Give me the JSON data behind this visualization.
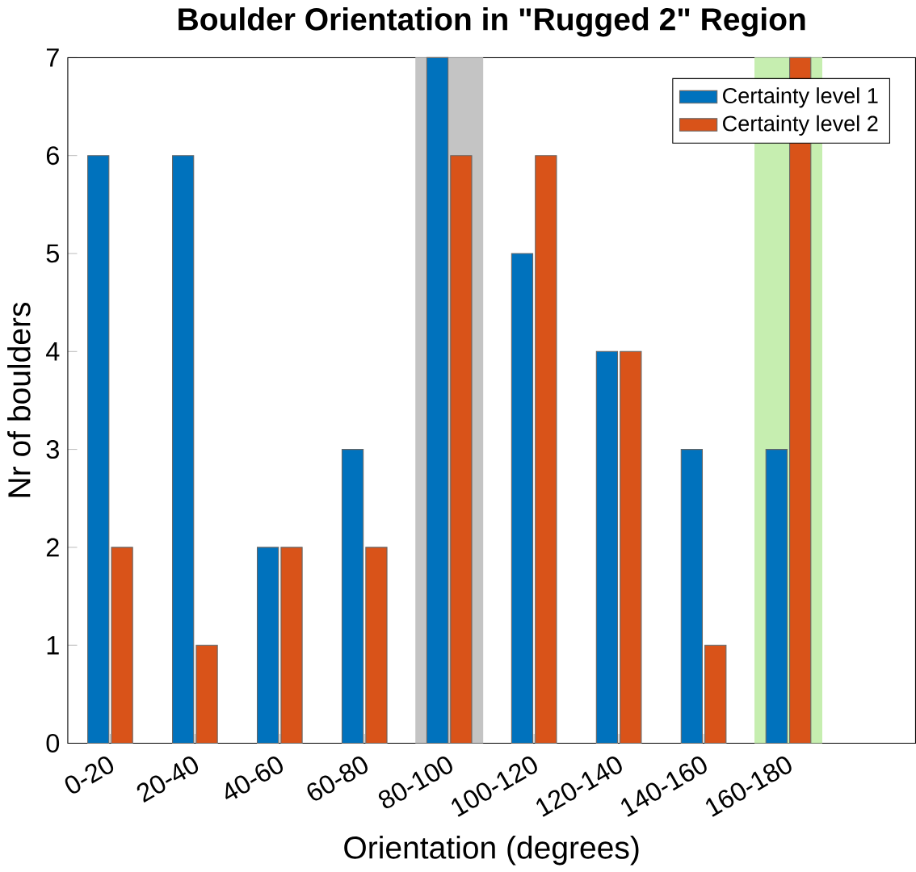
{
  "chart_data": {
    "type": "bar",
    "title": "Boulder Orientation in \"Rugged 2\" Region",
    "xlabel": "Orientation (degrees)",
    "ylabel": "Nr of boulders",
    "categories": [
      "0-20",
      "20-40",
      "40-60",
      "60-80",
      "80-100",
      "100-120",
      "120-140",
      "140-160",
      "160-180"
    ],
    "series": [
      {
        "name": "Certainty level 1",
        "color": "#0072bd",
        "values": [
          6,
          6,
          2,
          3,
          7,
          5,
          4,
          3,
          3
        ]
      },
      {
        "name": "Certainty level 2",
        "color": "#d95319",
        "values": [
          2,
          1,
          2,
          2,
          6,
          6,
          4,
          1,
          7
        ]
      }
    ],
    "ylim": [
      0,
      7
    ],
    "yticks": [
      0,
      1,
      2,
      3,
      4,
      5,
      6,
      7
    ],
    "bands": [
      {
        "axis": "x",
        "from": "80-100",
        "to": "80-100",
        "color": "#c4c4c4"
      },
      {
        "axis": "x",
        "from": "160-180",
        "to": "160-180",
        "color": "#c6eeb0"
      }
    ],
    "legend": "top right",
    "grid": false
  }
}
